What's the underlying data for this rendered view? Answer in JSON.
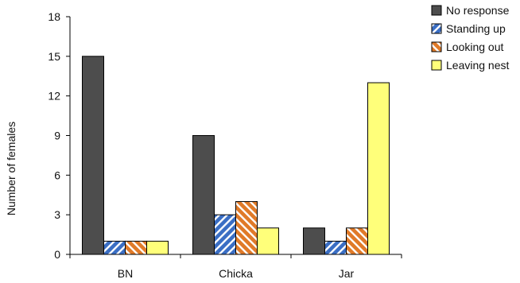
{
  "chart_data": {
    "type": "bar",
    "categories": [
      "BN",
      "Chicka",
      "Jar"
    ],
    "series": [
      {
        "name": "No response",
        "values": [
          15,
          9,
          2
        ],
        "color": "#4d4d4d",
        "pattern": "solid"
      },
      {
        "name": "Standing up",
        "values": [
          1,
          3,
          1
        ],
        "color": "#3a6ec4",
        "pattern": "hatch"
      },
      {
        "name": "Looking out",
        "values": [
          1,
          4,
          2
        ],
        "color": "#e07a28",
        "pattern": "hatch"
      },
      {
        "name": "Leaving nest",
        "values": [
          1,
          2,
          13
        ],
        "color": "#ffff7a",
        "pattern": "solid"
      }
    ],
    "ylabel": "Number of females",
    "xlabel": "",
    "ylim": [
      0,
      18
    ],
    "yticks": [
      0,
      3,
      6,
      9,
      12,
      15,
      18
    ],
    "grid": false,
    "legend_position": "top-right"
  }
}
